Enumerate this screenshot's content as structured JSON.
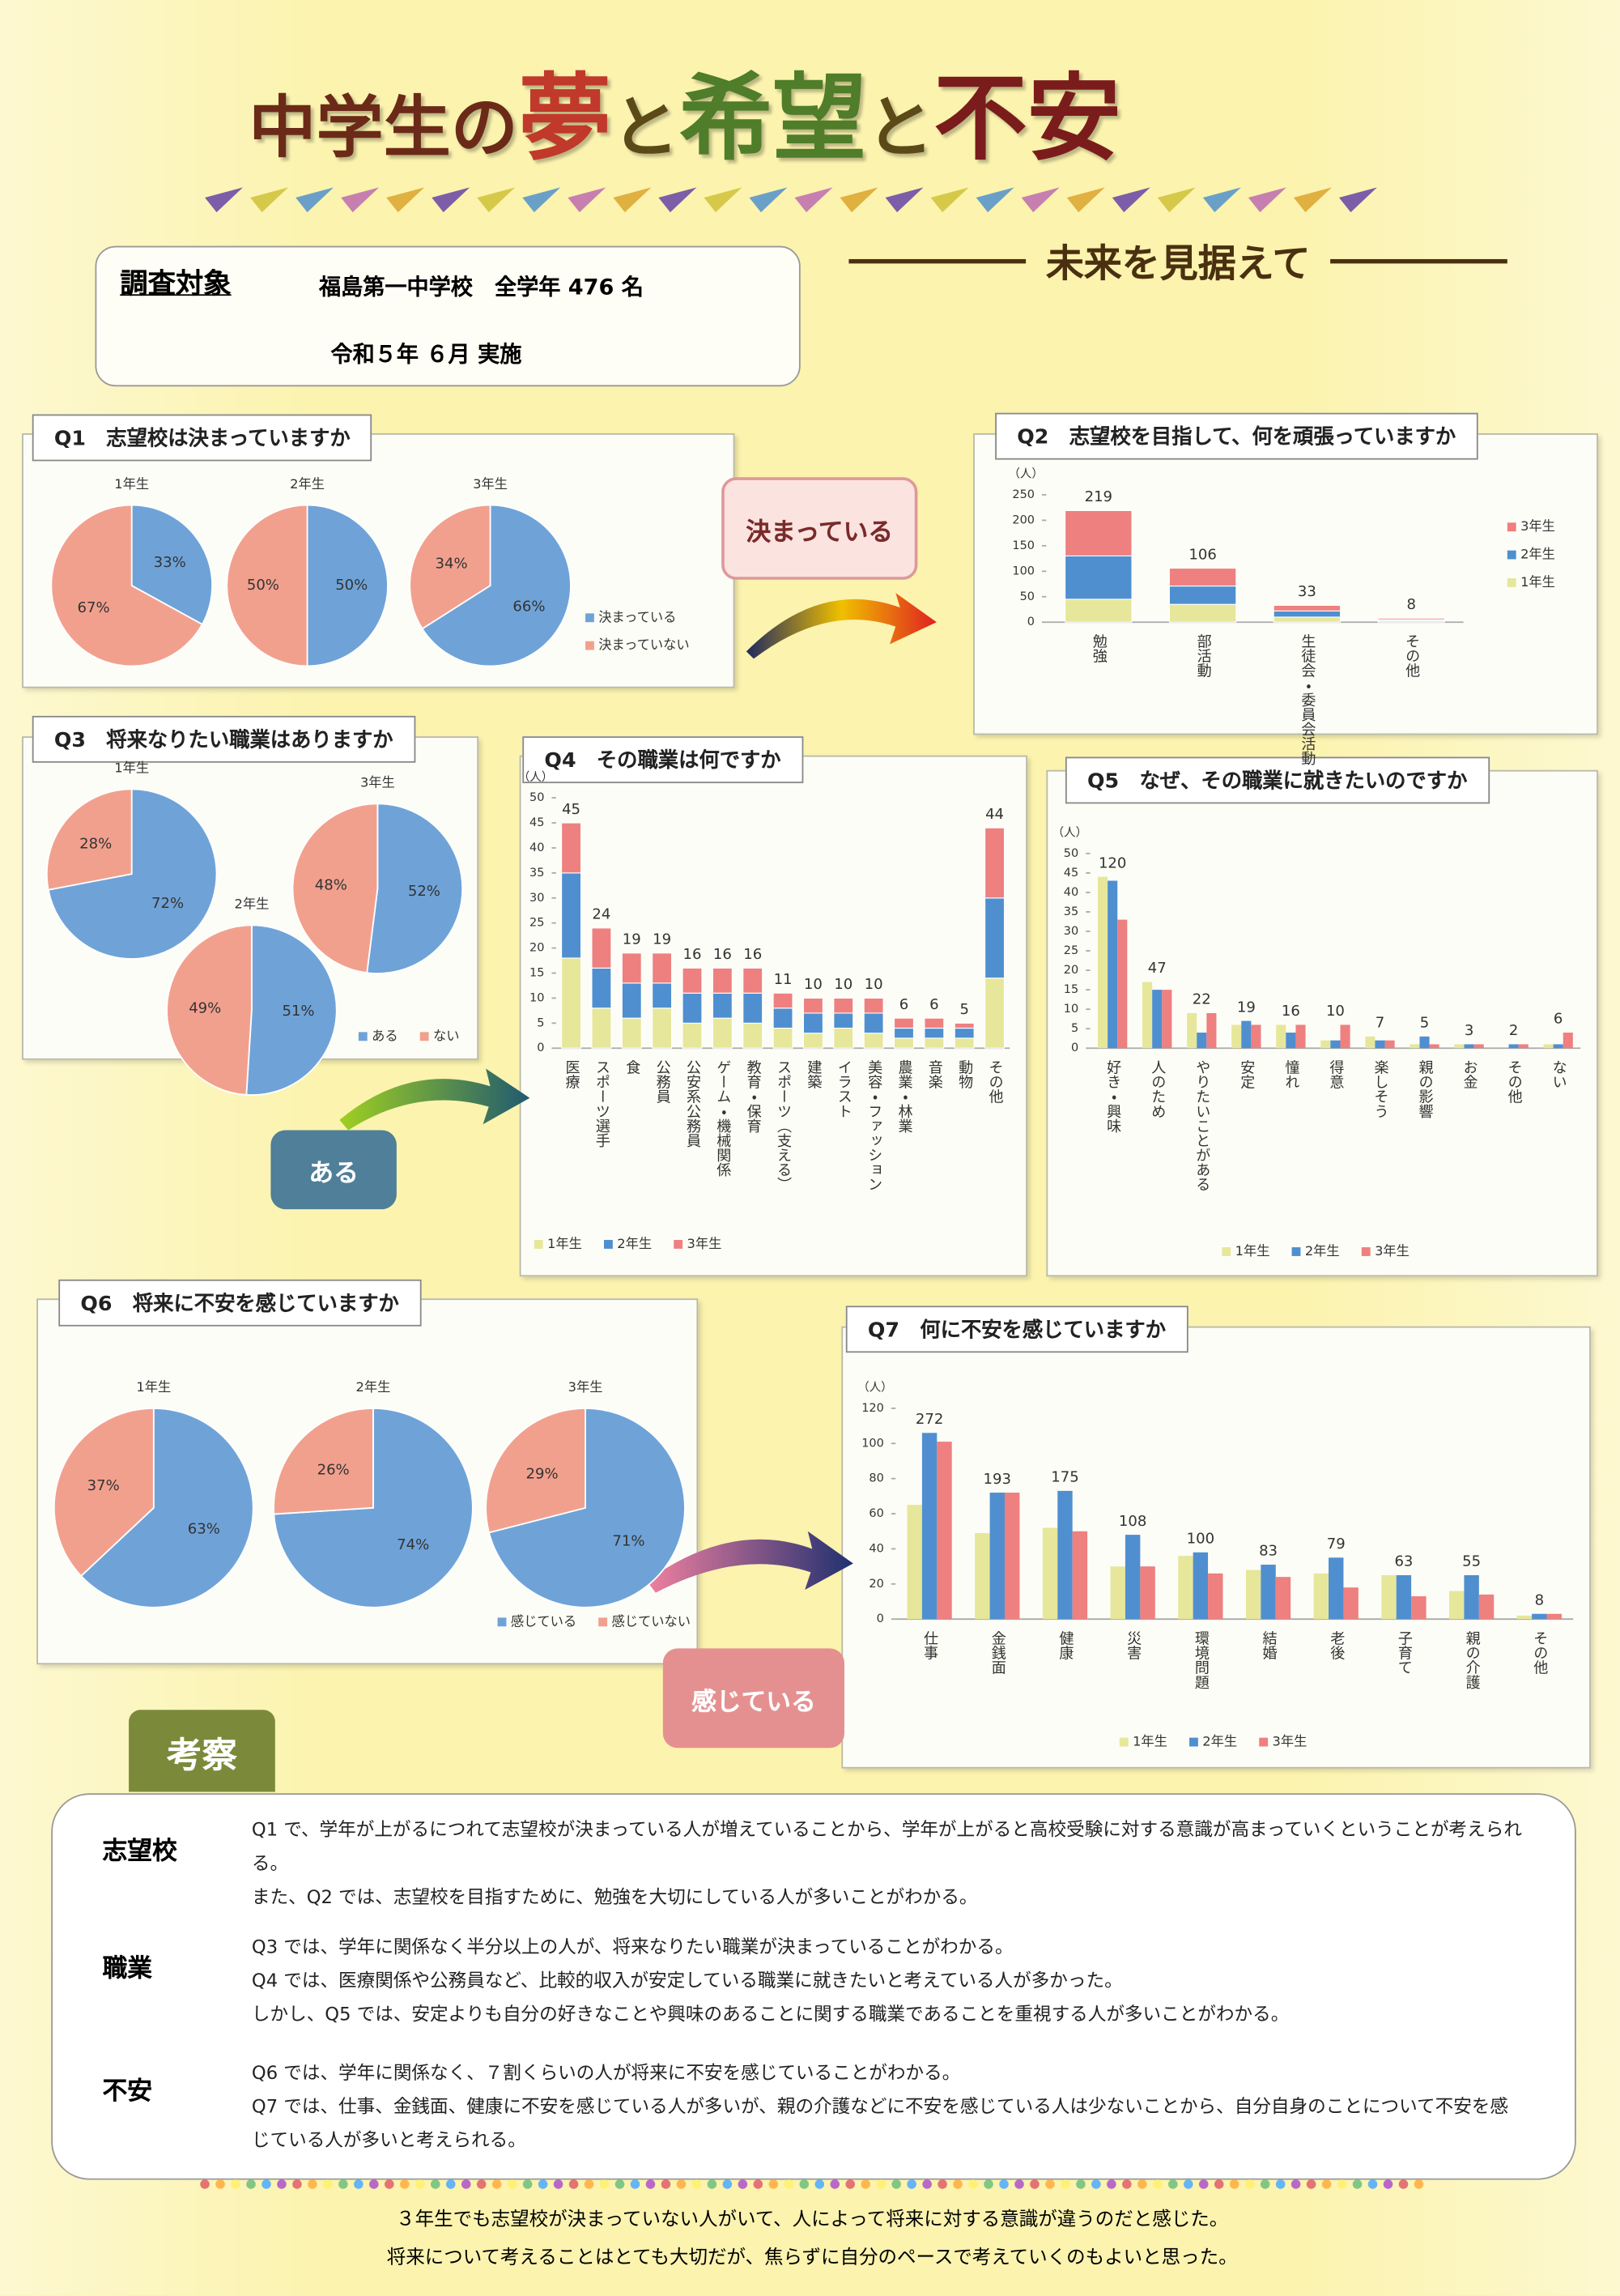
{
  "header": {
    "title_parts": [
      "中学生の",
      "夢",
      "と",
      "希望",
      "と",
      "不安"
    ],
    "subtitle": "未来を見据えて"
  },
  "survey": {
    "label": "調査対象",
    "target": "福島第一中学校　全学年 476 名",
    "date": "令和５年 ６月 実施"
  },
  "callouts": [
    "決まっている",
    "ある",
    "感じている"
  ],
  "chart_data": [
    {
      "type": "pie",
      "title": "Q1　志望校は決まっていますか",
      "categories": [
        "決まっている",
        "決まっていない"
      ],
      "colors": [
        "#6fa3d8",
        "#f2a08e"
      ],
      "pies": [
        {
          "name": "1年生",
          "values": [
            33,
            67
          ],
          "value_labels": [
            "33%",
            "67%"
          ]
        },
        {
          "name": "2年生",
          "values": [
            50,
            50
          ],
          "value_labels": [
            "50%",
            "50%"
          ]
        },
        {
          "name": "3年生",
          "values": [
            66,
            34
          ],
          "value_labels": [
            "66%",
            "34%"
          ]
        }
      ]
    },
    {
      "type": "bar",
      "stacked": true,
      "title": "Q2　志望校を目指して、何を頑張っていますか",
      "y_label": "（人）",
      "legend": "right",
      "categories": [
        "勉強",
        "部活動",
        "生徒会・委員会活動",
        "その他"
      ],
      "series": [
        {
          "name": "1年生",
          "color": "#e6e79a",
          "values": [
            45,
            35,
            10,
            3
          ]
        },
        {
          "name": "2年生",
          "color": "#4f8fd0",
          "values": [
            85,
            36,
            12,
            2
          ]
        },
        {
          "name": "3年生",
          "color": "#ee8080",
          "values": [
            89,
            35,
            11,
            3
          ]
        }
      ],
      "totals": [
        219,
        106,
        33,
        8
      ],
      "ylim": [
        0,
        250
      ],
      "yticks": [
        0,
        50,
        100,
        150,
        200,
        250
      ]
    },
    {
      "type": "pie",
      "title": "Q3　将来なりたい職業はありますか",
      "categories": [
        "ある",
        "ない"
      ],
      "colors": [
        "#6fa3d8",
        "#f2a08e"
      ],
      "pies": [
        {
          "name": "1年生",
          "values": [
            72,
            28
          ],
          "value_labels": [
            "72%",
            "28%"
          ]
        },
        {
          "name": "2年生",
          "values": [
            51,
            49
          ],
          "value_labels": [
            "51%",
            "49%"
          ]
        },
        {
          "name": "3年生",
          "values": [
            52,
            48
          ],
          "value_labels": [
            "52%",
            "48%"
          ]
        }
      ]
    },
    {
      "type": "bar",
      "stacked": true,
      "title": "Q4　その職業は何ですか",
      "y_label": "（人）",
      "legend": "bottom",
      "categories": [
        "医療",
        "スポーツ選手",
        "食",
        "公務員",
        "公安系公務員",
        "ゲーム・機械関係",
        "教育・保育",
        "スポーツ（支える）",
        "建築",
        "イラスト",
        "美容・ファッション",
        "農業・林業",
        "音楽",
        "動物",
        "その他"
      ],
      "series": [
        {
          "name": "1年生",
          "color": "#e6e79a",
          "values": [
            18,
            8,
            6,
            8,
            5,
            6,
            5,
            4,
            3,
            4,
            3,
            2,
            2,
            2,
            14
          ]
        },
        {
          "name": "2年生",
          "color": "#4f8fd0",
          "values": [
            17,
            8,
            7,
            5,
            6,
            5,
            6,
            4,
            4,
            3,
            4,
            2,
            2,
            2,
            16
          ]
        },
        {
          "name": "3年生",
          "color": "#ee8080",
          "values": [
            10,
            8,
            6,
            6,
            5,
            5,
            5,
            3,
            3,
            3,
            3,
            2,
            2,
            1,
            14
          ]
        }
      ],
      "totals": [
        45,
        24,
        19,
        19,
        16,
        16,
        16,
        11,
        10,
        10,
        10,
        6,
        6,
        5,
        44
      ],
      "ylim": [
        0,
        50
      ],
      "yticks": [
        0,
        5,
        10,
        15,
        20,
        25,
        30,
        35,
        40,
        45,
        50
      ]
    },
    {
      "type": "bar",
      "stacked": false,
      "title": "Q5　なぜ、その職業に就きたいのですか",
      "y_label": "（人）",
      "legend": "bottom",
      "categories": [
        "好き・興味",
        "人のため",
        "やりたいことがある",
        "安定",
        "憧れ",
        "得意",
        "楽しそう",
        "親の影響",
        "お金",
        "その他",
        "ない"
      ],
      "series": [
        {
          "name": "1年生",
          "color": "#e6e79a",
          "values": [
            44,
            17,
            9,
            6,
            6,
            2,
            3,
            1,
            1,
            0,
            1
          ]
        },
        {
          "name": "2年生",
          "color": "#4f8fd0",
          "values": [
            43,
            15,
            4,
            7,
            4,
            2,
            2,
            3,
            1,
            1,
            1
          ]
        },
        {
          "name": "3年生",
          "color": "#ee8080",
          "values": [
            33,
            15,
            9,
            6,
            6,
            6,
            2,
            1,
            1,
            1,
            4
          ]
        }
      ],
      "totals": [
        120,
        47,
        22,
        19,
        16,
        10,
        7,
        5,
        3,
        2,
        6
      ],
      "ylim": [
        0,
        50
      ],
      "yticks": [
        0,
        5,
        10,
        15,
        20,
        25,
        30,
        35,
        40,
        45,
        50
      ]
    },
    {
      "type": "pie",
      "title": "Q6　将来に不安を感じていますか",
      "categories": [
        "感じている",
        "感じていない"
      ],
      "colors": [
        "#6fa3d8",
        "#f2a08e"
      ],
      "pies": [
        {
          "name": "1年生",
          "values": [
            63,
            37
          ],
          "value_labels": [
            "63%",
            "37%"
          ]
        },
        {
          "name": "2年生",
          "values": [
            74,
            26
          ],
          "value_labels": [
            "74%",
            "26%"
          ]
        },
        {
          "name": "3年生",
          "values": [
            71,
            29
          ],
          "value_labels": [
            "71%",
            "29%"
          ]
        }
      ]
    },
    {
      "type": "bar",
      "stacked": false,
      "title": "Q7　何に不安を感じていますか",
      "y_label": "（人）",
      "legend": "bottom",
      "categories": [
        "仕事",
        "金銭面",
        "健康",
        "災害",
        "環境問題",
        "結婚",
        "老後",
        "子育て",
        "親の介護",
        "その他"
      ],
      "series": [
        {
          "name": "1年生",
          "color": "#e6e79a",
          "values": [
            65,
            49,
            52,
            30,
            36,
            28,
            26,
            25,
            16,
            2
          ]
        },
        {
          "name": "2年生",
          "color": "#4f8fd0",
          "values": [
            106,
            72,
            73,
            48,
            38,
            31,
            35,
            25,
            25,
            3
          ]
        },
        {
          "name": "3年生",
          "color": "#ee8080",
          "values": [
            101,
            72,
            50,
            30,
            26,
            24,
            18,
            13,
            14,
            3
          ]
        }
      ],
      "totals": [
        272,
        193,
        175,
        108,
        100,
        83,
        79,
        63,
        55,
        8
      ],
      "ylim": [
        0,
        120
      ],
      "yticks": [
        0,
        20,
        40,
        60,
        80,
        100,
        120
      ]
    }
  ],
  "conclusions": {
    "heading": "考察",
    "sections": [
      {
        "label": "志望校",
        "lines": [
          "Q1 で、学年が上がるにつれて志望校が決まっている人が増えていることから、学年が上がると高校受験に対する意識が高まっていくということが考えられる。",
          "また、Q2 では、志望校を目指すために、勉強を大切にしている人が多いことがわかる。"
        ]
      },
      {
        "label": "職業",
        "lines": [
          "Q3 では、学年に関係なく半分以上の人が、将来なりたい職業が決まっていることがわかる。",
          "Q4 では、医療関係や公務員など、比較的収入が安定している職業に就きたいと考えている人が多かった。",
          "しかし、Q5 では、安定よりも自分の好きなことや興味のあることに関する職業であることを重視する人が多いことがわかる。"
        ]
      },
      {
        "label": "不安",
        "lines": [
          "Q6 では、学年に関係なく、７割くらいの人が将来に不安を感じていることがわかる。",
          "Q7 では、仕事、金銭面、健康に不安を感じている人が多いが、親の介護などに不安を感じている人は少ないことから、自分自身のことについて不安を感じている人が多いと考えられる。"
        ]
      }
    ],
    "closing": [
      "３年生でも志望校が決まっていない人がいて、人によって将来に対する意識が違うのだと感じた。",
      "将来について考えることはとても大切だが、焦らずに自分のペースで考えていくのもよいと思った。"
    ]
  }
}
